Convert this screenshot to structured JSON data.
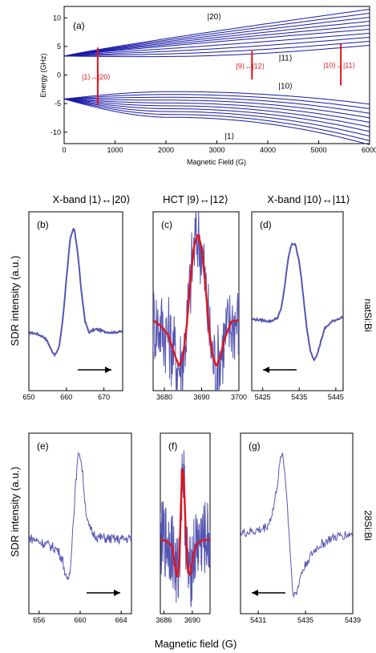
{
  "figure": {
    "ylabel_sdr": "SDR intensity (a.u.)",
    "xlabel_bottom": "Magnetic field (G)",
    "row_label_nat": "natSi:Bi",
    "row_label_28": "28Si:Bi"
  },
  "chart_data": [
    {
      "id": "a",
      "type": "line",
      "panel_label": "(a)",
      "xlabel": "Magnetic Field (G)",
      "ylabel": "Energy (GHz)",
      "xlim": [
        0,
        6000
      ],
      "ylim": [
        -12,
        12
      ],
      "xticks": [
        0,
        1000,
        2000,
        3000,
        4000,
        5000,
        6000
      ],
      "yticks": [
        -10,
        -5,
        0,
        5,
        10
      ],
      "upper_levels": {
        "count": 10,
        "start": [
          0,
          3.3
        ],
        "end_y_at_6000": [
          5.2,
          5.9,
          6.6,
          7.3,
          8.0,
          8.7,
          9.4,
          10.1,
          10.8,
          11.5
        ]
      },
      "lower_levels": {
        "count": 10,
        "start": [
          0,
          -4.2
        ],
        "peak_y": [
          -2.9,
          -3.4,
          -3.9,
          -4.4,
          -4.9,
          -5.4,
          -5.9,
          -6.4,
          -6.9,
          -7.4
        ],
        "end_y_at_6000": [
          -5.1,
          -5.9,
          -6.7,
          -7.5,
          -8.3,
          -9.1,
          -9.9,
          -10.7,
          -11.5,
          -12.2
        ]
      },
      "state_labels": [
        {
          "text": "|20⟩",
          "x": 2950,
          "y": 10.3
        },
        {
          "text": "|11⟩",
          "x": 4350,
          "y": 3.1
        },
        {
          "text": "|10⟩",
          "x": 4350,
          "y": -1.8
        },
        {
          "text": "|1⟩",
          "x": 3250,
          "y": -10.6
        }
      ],
      "transitions": [
        {
          "label": "|1⟩↔|20⟩",
          "x": 660,
          "y_from": -5.2,
          "y_to": 4.8
        },
        {
          "label": "|9⟩↔|12⟩",
          "x": 3690,
          "y_from": -0.8,
          "y_to": 4.2
        },
        {
          "label": "|10⟩↔|11⟩",
          "x": 5435,
          "y_from": -1.8,
          "y_to": 5.4
        }
      ],
      "line_color": "#1a1aa8",
      "transition_color": "#e0141c"
    },
    {
      "id": "b",
      "type": "line",
      "panel_label": "(b)",
      "column_title": "X-band |1⟩↔|20⟩",
      "xlim": [
        650,
        675
      ],
      "xticks": [
        650,
        660,
        670
      ],
      "series": [
        {
          "color": "#5656b2",
          "x": [
            650,
            652,
            654,
            655,
            656,
            657,
            658,
            659,
            660,
            661,
            662,
            663,
            664,
            665,
            666,
            667,
            668,
            670,
            672,
            675
          ],
          "y": [
            0.02,
            0.01,
            -0.02,
            -0.06,
            -0.14,
            -0.18,
            -0.12,
            0.12,
            0.5,
            0.85,
            0.96,
            0.75,
            0.38,
            0.12,
            0.02,
            0.04,
            0.05,
            0.03,
            0.02,
            0.03
          ]
        }
      ],
      "arrow": "right"
    },
    {
      "id": "c",
      "type": "line",
      "panel_label": "(c)",
      "column_title": "HCT |9⟩↔|12⟩",
      "xlim": [
        3677,
        3700
      ],
      "xticks": [
        3680,
        3690,
        3700
      ],
      "series": [
        {
          "color": "#5656b2",
          "noisy": true,
          "x": [
            3677,
            3679,
            3681,
            3683,
            3684,
            3685,
            3686,
            3687,
            3688,
            3689,
            3690,
            3691,
            3692,
            3693,
            3694,
            3695,
            3696,
            3698,
            3700
          ],
          "y": [
            0.03,
            -0.02,
            -0.1,
            -0.3,
            -0.38,
            -0.3,
            -0.02,
            0.38,
            0.7,
            0.8,
            0.68,
            0.35,
            -0.05,
            -0.3,
            -0.38,
            -0.3,
            -0.15,
            0.02,
            0.03
          ]
        },
        {
          "color": "#e0141c",
          "x": [
            3677,
            3679,
            3681,
            3683,
            3684,
            3685,
            3686,
            3687,
            3688,
            3689,
            3690,
            3691,
            3692,
            3693,
            3694,
            3695,
            3696,
            3698,
            3700
          ],
          "y": [
            0.03,
            -0.02,
            -0.1,
            -0.3,
            -0.38,
            -0.3,
            -0.02,
            0.38,
            0.7,
            0.8,
            0.68,
            0.35,
            -0.05,
            -0.3,
            -0.38,
            -0.3,
            -0.15,
            0.02,
            0.03
          ]
        }
      ]
    },
    {
      "id": "d",
      "type": "line",
      "panel_label": "(d)",
      "column_title": "X-band |10⟩↔|11⟩",
      "xlim": [
        5422,
        5447
      ],
      "xticks": [
        5425,
        5435,
        5445
      ],
      "series": [
        {
          "color": "#5656b2",
          "x": [
            5422,
            5425,
            5427,
            5429,
            5430,
            5431,
            5432,
            5433,
            5434,
            5435,
            5436,
            5437,
            5438,
            5439,
            5440,
            5441,
            5442,
            5444,
            5447
          ],
          "y": [
            0.02,
            0.01,
            0.0,
            0.03,
            0.1,
            0.3,
            0.55,
            0.68,
            0.66,
            0.52,
            0.25,
            -0.05,
            -0.25,
            -0.33,
            -0.28,
            -0.16,
            -0.06,
            0.0,
            0.04
          ]
        }
      ],
      "arrow": "left"
    },
    {
      "id": "e",
      "type": "line",
      "panel_label": "(e)",
      "xlim": [
        655,
        665
      ],
      "xticks": [
        656,
        660,
        664
      ],
      "series": [
        {
          "color": "#5656b2",
          "noisy": true,
          "x": [
            655,
            656,
            657,
            657.8,
            658.3,
            658.7,
            659,
            659.3,
            659.6,
            659.9,
            660.2,
            660.5,
            660.8,
            661.2,
            661.8,
            662.5,
            663.5,
            665
          ],
          "y": [
            0.04,
            0.0,
            -0.04,
            -0.08,
            -0.18,
            -0.4,
            -0.3,
            0.15,
            0.62,
            0.9,
            0.7,
            0.35,
            0.15,
            0.08,
            0.04,
            0.03,
            0.02,
            0.03
          ]
        }
      ],
      "arrow": "right"
    },
    {
      "id": "f",
      "type": "line",
      "panel_label": "(f)",
      "xlim": [
        3685.5,
        3692.5
      ],
      "xticks": [
        3686,
        3690
      ],
      "series": [
        {
          "color": "#5656b2",
          "noisy": true,
          "x": [
            3685.5,
            3686.5,
            3687.2,
            3687.6,
            3687.9,
            3688.2,
            3688.4,
            3688.6,
            3688.8,
            3689.1,
            3689.4,
            3689.7,
            3690.1,
            3690.6,
            3691.3,
            3692.5
          ],
          "y": [
            0.02,
            0.0,
            -0.05,
            -0.25,
            -0.35,
            -0.15,
            0.35,
            0.72,
            0.62,
            0.05,
            -0.3,
            -0.32,
            -0.15,
            -0.03,
            0.01,
            0.02
          ]
        },
        {
          "color": "#e0141c",
          "x": [
            3685.5,
            3686.5,
            3687.2,
            3687.6,
            3687.9,
            3688.2,
            3688.4,
            3688.6,
            3688.8,
            3689.1,
            3689.4,
            3689.7,
            3690.1,
            3690.6,
            3691.3,
            3692.5
          ],
          "y": [
            0.02,
            0.0,
            -0.05,
            -0.25,
            -0.35,
            -0.15,
            0.35,
            0.72,
            0.62,
            0.05,
            -0.3,
            -0.32,
            -0.15,
            -0.03,
            0.01,
            0.02
          ]
        }
      ]
    },
    {
      "id": "g",
      "type": "line",
      "panel_label": "(g)",
      "xlim": [
        5429.5,
        5439
      ],
      "xticks": [
        5431,
        5435,
        5439
      ],
      "series": [
        {
          "color": "#5656b2",
          "noisy": true,
          "x": [
            5429.5,
            5430.5,
            5431.3,
            5431.9,
            5432.3,
            5432.7,
            5433,
            5433.3,
            5433.6,
            5433.9,
            5434.2,
            5434.6,
            5435.2,
            5436,
            5437,
            5438,
            5439
          ],
          "y": [
            0.02,
            0.04,
            0.06,
            0.12,
            0.28,
            0.6,
            0.88,
            0.6,
            0.05,
            -0.55,
            -0.62,
            -0.4,
            -0.25,
            -0.12,
            -0.04,
            0.0,
            0.02
          ]
        }
      ],
      "arrow": "left"
    }
  ]
}
